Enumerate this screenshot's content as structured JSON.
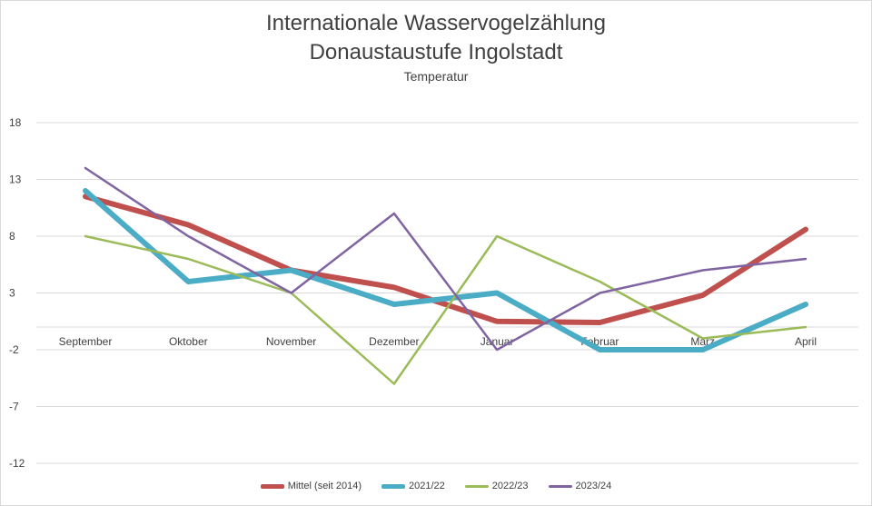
{
  "chart_data": {
    "type": "line",
    "title": "Internationale Wasservogelzählung",
    "subtitle": "Donaustaustufe Ingolstadt",
    "ylabel_caption": "Temperatur",
    "categories": [
      "September",
      "Oktober",
      "November",
      "Dezember",
      "Januar",
      "Februar",
      "März",
      "April"
    ],
    "yticks": [
      "18",
      "13",
      "8",
      "3",
      "-2",
      "-7",
      "-12"
    ],
    "ylim": [
      -12,
      18
    ],
    "grid": true,
    "legend_position": "bottom",
    "series": [
      {
        "name": "Mittel (seit 2014)",
        "color": "#c0504d",
        "width": "thick",
        "values": [
          11.5,
          9,
          5,
          3.5,
          0.5,
          0.4,
          2.8,
          8.6
        ]
      },
      {
        "name": "2021/22",
        "color": "#4bacc6",
        "width": "thick",
        "values": [
          12,
          4,
          5,
          2,
          3,
          -2,
          -2,
          2
        ]
      },
      {
        "name": "2022/23",
        "color": "#9bbb59",
        "width": "thin",
        "values": [
          8,
          6,
          3,
          -5,
          8,
          4,
          -1,
          0
        ]
      },
      {
        "name": "2023/24",
        "color": "#8064a2",
        "width": "thin",
        "values": [
          14,
          8,
          3,
          10,
          -2,
          3,
          5,
          6
        ]
      }
    ]
  }
}
